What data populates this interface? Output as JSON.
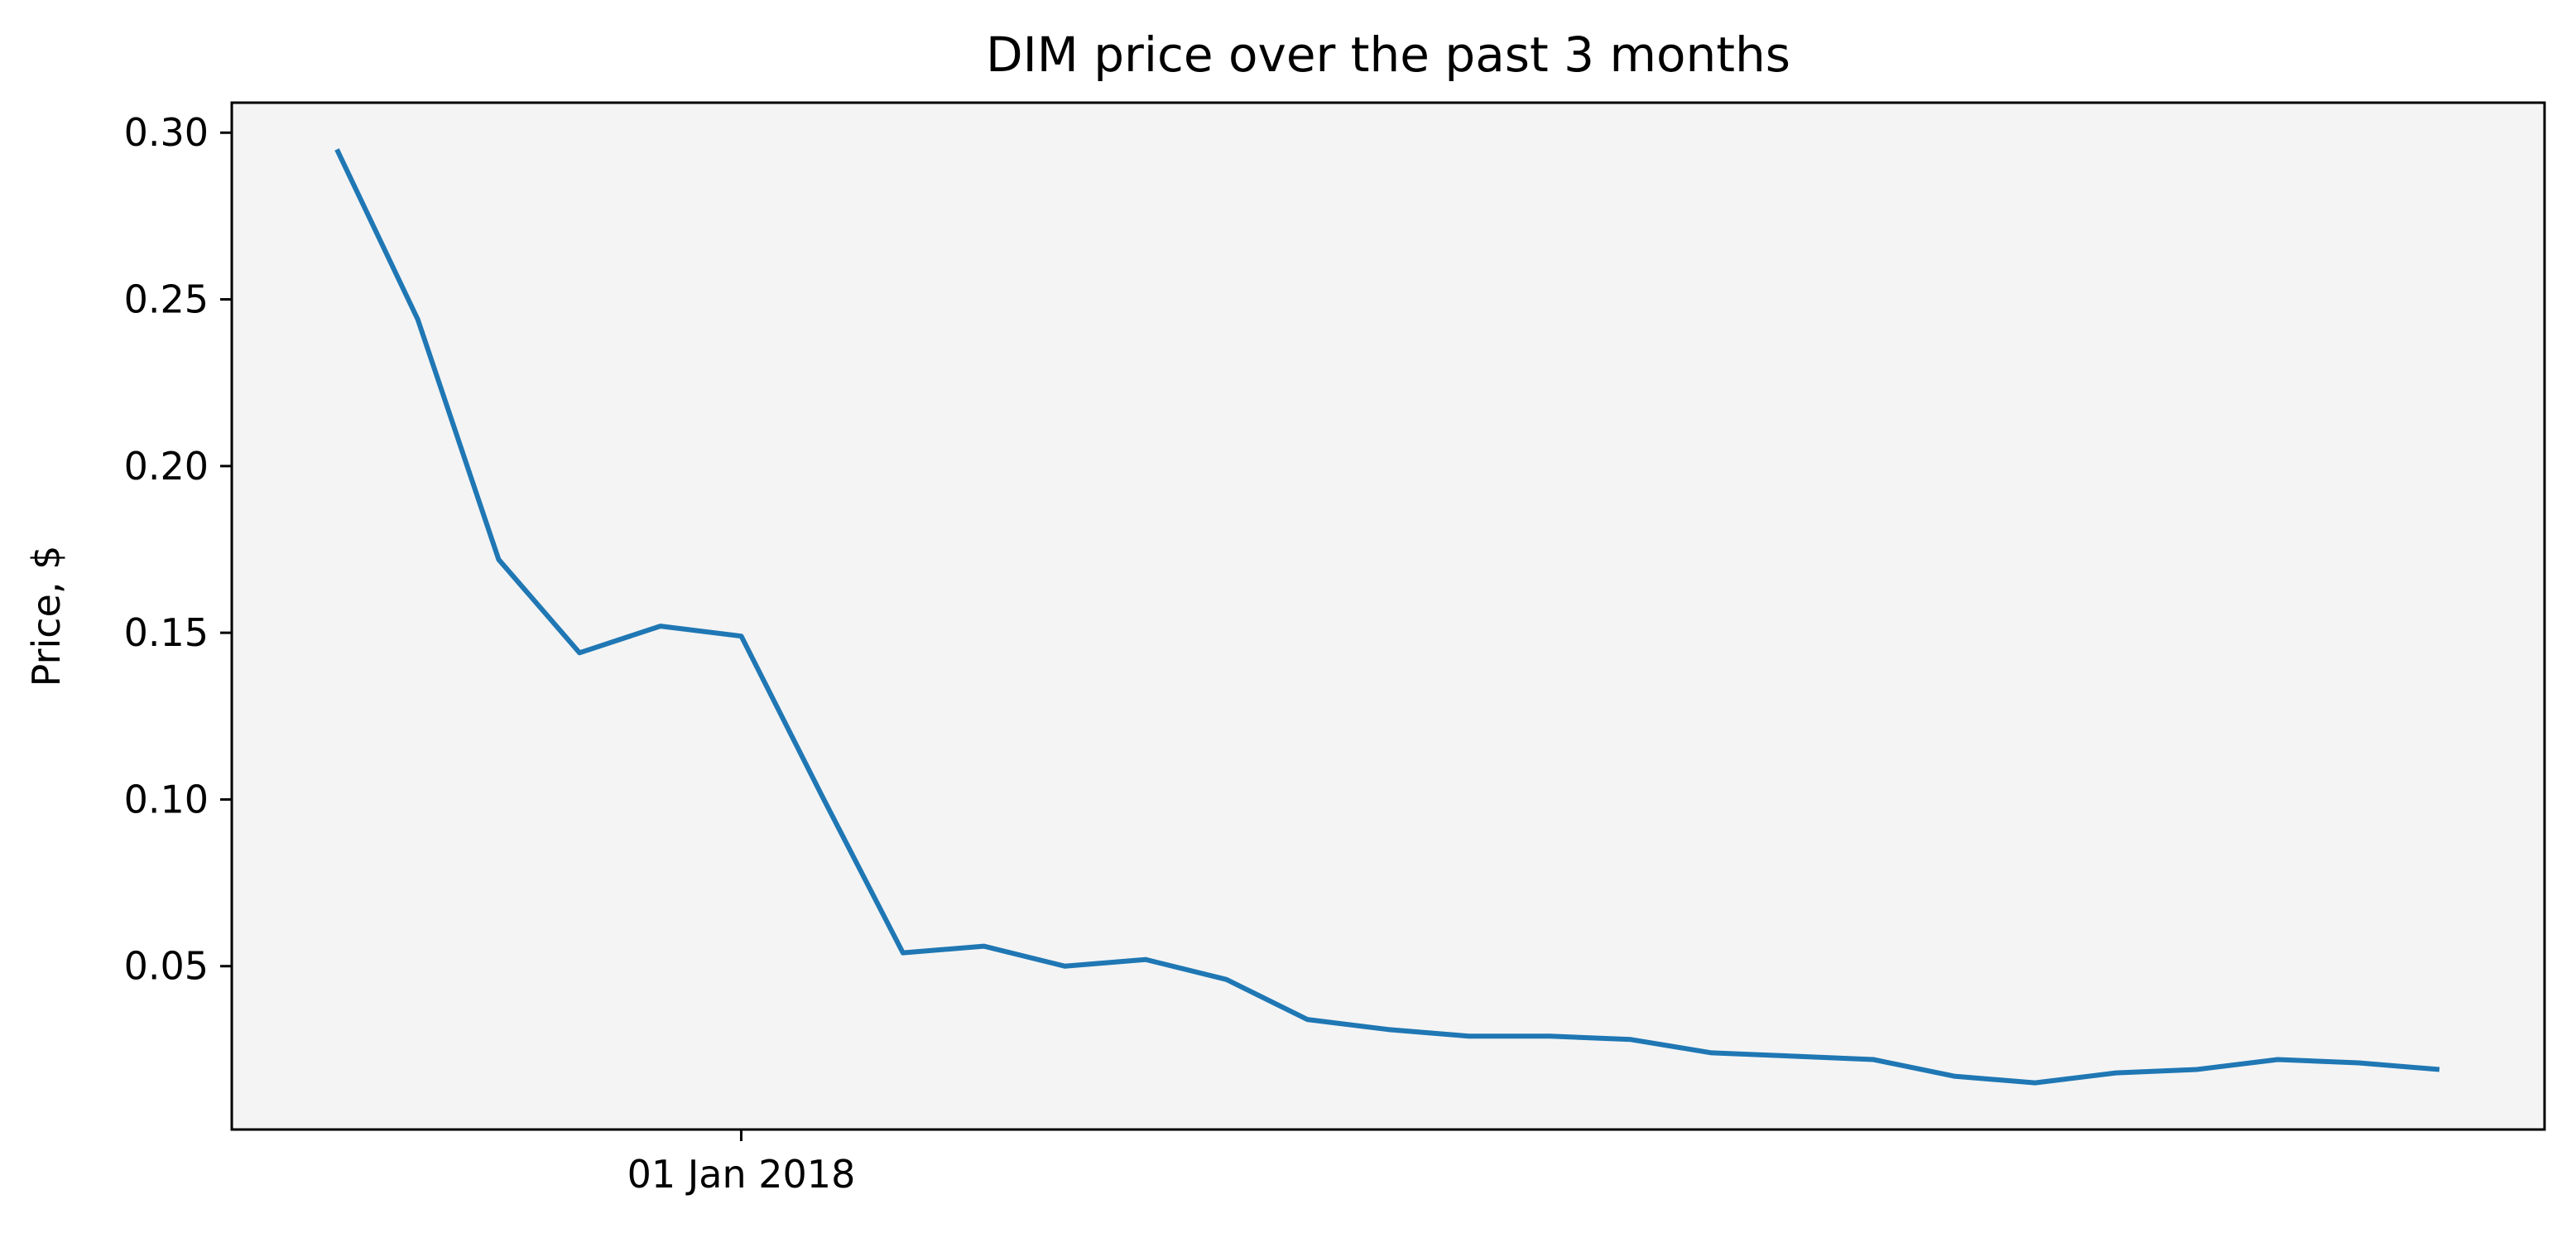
{
  "chart_data": {
    "type": "line",
    "title": "DIM price over the past 3 months",
    "xlabel": "",
    "ylabel": "Price, $",
    "x_ticks": [
      {
        "label": "01 Jan 2018",
        "index": 5
      }
    ],
    "y_ticks": [
      "0.05",
      "0.10",
      "0.15",
      "0.20",
      "0.25",
      "0.30"
    ],
    "ylim": [
      0.001,
      0.309
    ],
    "xlim": [
      -1.3,
      27.3
    ],
    "grid": false,
    "series": [
      {
        "color": "#1f77b4",
        "values": [
          0.295,
          0.244,
          0.172,
          0.144,
          0.152,
          0.149,
          0.101,
          0.054,
          0.056,
          0.05,
          0.052,
          0.046,
          0.034,
          0.031,
          0.029,
          0.029,
          0.028,
          0.024,
          0.023,
          0.022,
          0.017,
          0.015,
          0.018,
          0.019,
          0.022,
          0.021,
          0.019
        ]
      }
    ],
    "plot_background": "#f4f4f4"
  }
}
